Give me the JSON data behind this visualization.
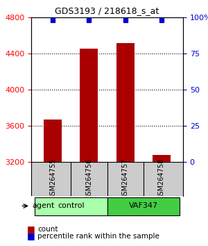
{
  "title": "GDS3193 / 218618_s_at",
  "samples": [
    "GSM264755",
    "GSM264756",
    "GSM264757",
    "GSM264758"
  ],
  "counts": [
    3670,
    4450,
    4510,
    3270
  ],
  "percentiles": [
    98,
    98,
    98,
    98
  ],
  "ylim_left": [
    3200,
    4800
  ],
  "ylim_right": [
    0,
    100
  ],
  "yticks_left": [
    3200,
    3600,
    4000,
    4400,
    4800
  ],
  "yticks_right": [
    0,
    25,
    50,
    75,
    100
  ],
  "bar_color": "#aa0000",
  "dot_color": "#0000cc",
  "bar_width": 0.5,
  "groups": [
    {
      "label": "control",
      "indices": [
        0,
        1
      ],
      "color": "#aaffaa"
    },
    {
      "label": "VAF347",
      "indices": [
        2,
        3
      ],
      "color": "#44cc44"
    }
  ],
  "group_row_label": "agent",
  "legend_count_color": "#aa0000",
  "legend_dot_color": "#0000cc",
  "background_color": "#ffffff",
  "plot_bg_color": "#ffffff",
  "sample_box_color": "#cccccc"
}
